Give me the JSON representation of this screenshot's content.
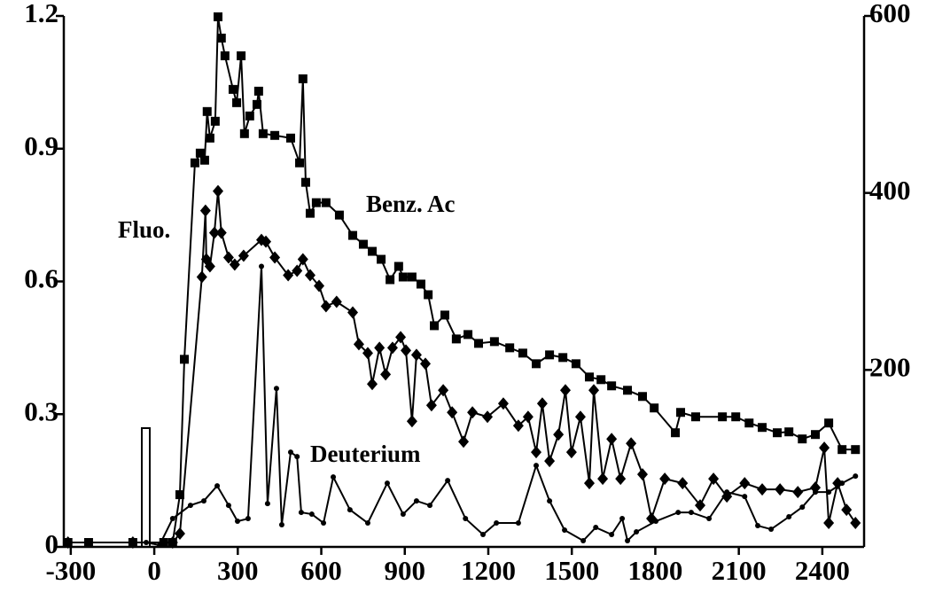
{
  "chart_data": {
    "type": "line",
    "xlim": [
      -325,
      2550
    ],
    "xticks": [
      -300,
      0,
      300,
      600,
      900,
      1200,
      1500,
      1800,
      2100,
      2400
    ],
    "ylim": [
      0,
      1.2
    ],
    "yticks": [
      0,
      0.3,
      0.6,
      0.9,
      1.2
    ],
    "y2lim": [
      0,
      600
    ],
    "y2ticks": [
      200,
      400,
      600
    ],
    "series": [
      {
        "name": "Benz. Ac",
        "marker": "square",
        "color": "#000000",
        "x": [
          -310,
          -236,
          -77,
          34,
          66,
          92,
          108,
          146,
          165,
          181,
          190,
          200,
          219,
          229,
          241,
          254,
          283,
          296,
          312,
          324,
          343,
          369,
          375,
          391,
          433,
          490,
          522,
          534,
          544,
          560,
          582,
          617,
          665,
          713,
          751,
          783,
          815,
          847,
          878,
          894,
          926,
          958,
          984,
          1006,
          1044,
          1085,
          1127,
          1165,
          1222,
          1277,
          1324,
          1372,
          1420,
          1468,
          1515,
          1563,
          1605,
          1643,
          1700,
          1754,
          1796,
          1872,
          1891,
          1945,
          2041,
          2089,
          2137,
          2184,
          2238,
          2280,
          2328,
          2375,
          2423,
          2471,
          2519
        ],
        "values": [
          0.01,
          0.01,
          0.01,
          0.01,
          0.01,
          0.118,
          0.424,
          0.868,
          0.89,
          0.874,
          0.984,
          0.924,
          0.962,
          1.198,
          1.15,
          1.11,
          1.034,
          1.004,
          1.11,
          0.934,
          0.974,
          1.0,
          1.03,
          0.934,
          0.93,
          0.924,
          0.868,
          1.058,
          0.824,
          0.754,
          0.778,
          0.778,
          0.75,
          0.704,
          0.684,
          0.668,
          0.65,
          0.604,
          0.634,
          0.61,
          0.61,
          0.594,
          0.57,
          0.5,
          0.524,
          0.47,
          0.48,
          0.46,
          0.464,
          0.45,
          0.438,
          0.414,
          0.434,
          0.428,
          0.414,
          0.384,
          0.378,
          0.364,
          0.354,
          0.34,
          0.314,
          0.258,
          0.304,
          0.294,
          0.294,
          0.294,
          0.28,
          0.27,
          0.258,
          0.26,
          0.244,
          0.254,
          0.28,
          0.22,
          0.22
        ]
      },
      {
        "name": "Fluo.",
        "marker": "diamond",
        "color": "#000000",
        "x": [
          -310,
          -77,
          66,
          92,
          171,
          184,
          187,
          200,
          216,
          229,
          241,
          267,
          289,
          321,
          385,
          401,
          433,
          481,
          513,
          534,
          560,
          592,
          617,
          655,
          713,
          735,
          767,
          783,
          809,
          831,
          856,
          885,
          904,
          926,
          942,
          974,
          996,
          1038,
          1070,
          1111,
          1143,
          1197,
          1254,
          1308,
          1343,
          1372,
          1394,
          1420,
          1452,
          1477,
          1499,
          1531,
          1563,
          1579,
          1611,
          1643,
          1675,
          1713,
          1754,
          1786,
          1834,
          1898,
          1961,
          2009,
          2057,
          2121,
          2184,
          2248,
          2312,
          2375,
          2407,
          2423,
          2455,
          2487,
          2519
        ],
        "values": [
          0.01,
          0.01,
          0.01,
          0.03,
          0.61,
          0.76,
          0.65,
          0.634,
          0.71,
          0.804,
          0.71,
          0.654,
          0.638,
          0.658,
          0.694,
          0.69,
          0.654,
          0.614,
          0.624,
          0.65,
          0.614,
          0.59,
          0.544,
          0.554,
          0.53,
          0.458,
          0.438,
          0.368,
          0.45,
          0.39,
          0.45,
          0.474,
          0.444,
          0.284,
          0.434,
          0.414,
          0.32,
          0.354,
          0.304,
          0.238,
          0.304,
          0.294,
          0.324,
          0.274,
          0.294,
          0.214,
          0.324,
          0.194,
          0.254,
          0.354,
          0.214,
          0.294,
          0.144,
          0.354,
          0.154,
          0.244,
          0.154,
          0.234,
          0.164,
          0.064,
          0.154,
          0.144,
          0.094,
          0.154,
          0.114,
          0.144,
          0.13,
          0.13,
          0.124,
          0.134,
          0.224,
          0.054,
          0.144,
          0.084,
          0.054
        ]
      },
      {
        "name": "Deuterium",
        "marker": "dot",
        "color": "#000000",
        "x": [
          -310,
          -29,
          19,
          66,
          130,
          178,
          226,
          267,
          299,
          337,
          385,
          407,
          439,
          458,
          490,
          513,
          528,
          566,
          608,
          643,
          703,
          767,
          837,
          894,
          942,
          990,
          1054,
          1118,
          1181,
          1229,
          1308,
          1372,
          1420,
          1474,
          1541,
          1586,
          1643,
          1681,
          1700,
          1732,
          1802,
          1882,
          1929,
          1993,
          2057,
          2121,
          2168,
          2216,
          2280,
          2328,
          2375,
          2423,
          2471,
          2519
        ],
        "values": [
          0.01,
          0.01,
          0.004,
          0.064,
          0.094,
          0.104,
          0.138,
          0.094,
          0.058,
          0.064,
          0.634,
          0.098,
          0.358,
          0.05,
          0.214,
          0.204,
          0.078,
          0.074,
          0.054,
          0.158,
          0.084,
          0.054,
          0.144,
          0.074,
          0.104,
          0.094,
          0.15,
          0.064,
          0.028,
          0.054,
          0.054,
          0.184,
          0.104,
          0.038,
          0.014,
          0.044,
          0.028,
          0.064,
          0.014,
          0.034,
          0.058,
          0.078,
          0.078,
          0.064,
          0.124,
          0.114,
          0.048,
          0.04,
          0.068,
          0.09,
          0.124,
          0.124,
          0.144,
          0.16
        ]
      }
    ]
  }
}
